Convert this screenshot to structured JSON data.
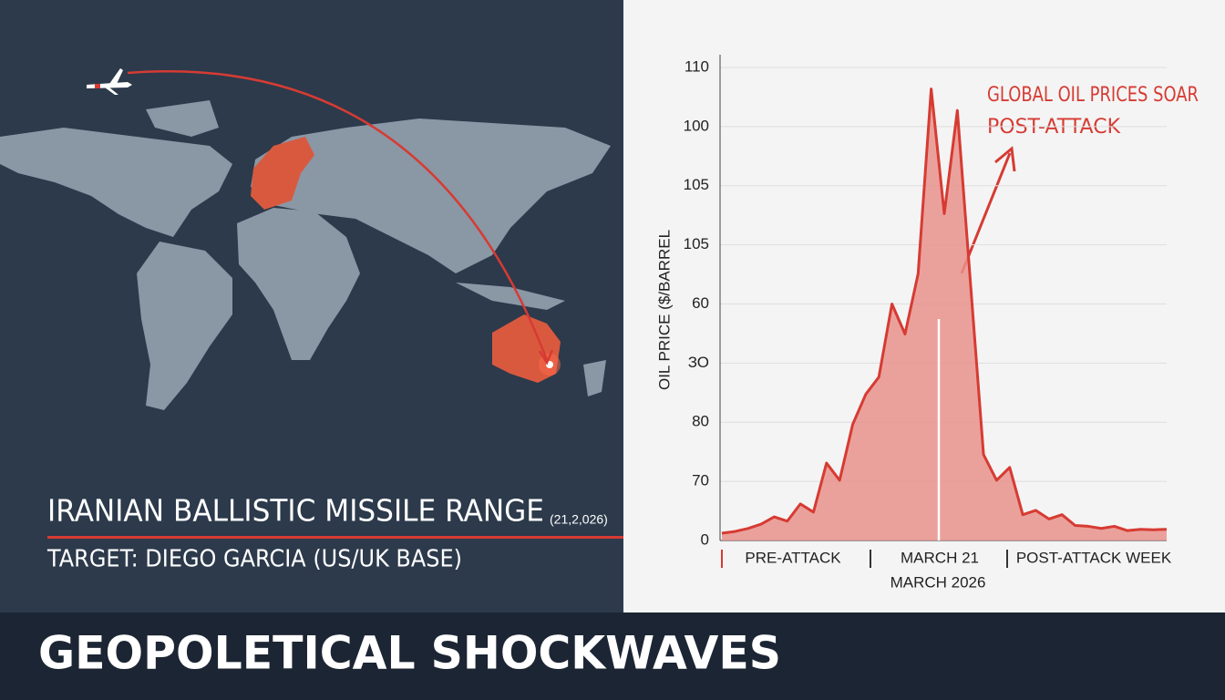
{
  "map": {
    "title": "IRANIAN BALLISTIC MISSILE RANGE",
    "date": "(21,2,026)",
    "target": "TARGET: DIEGO GARCIA (US/UK BASE)"
  },
  "banner": {
    "title": "GEOPOLETICAL SHOCKWAVES"
  },
  "chart_data": {
    "type": "area",
    "y_label": "OIL PRICE ($/BARREL",
    "annotation": [
      "GLOBAL OIL PRICES SOAR",
      "POST-ATTACK"
    ],
    "x_labels": [
      "PRE-ATTACK",
      "MARCH 21",
      "MARCH 2026",
      "POST-ATTACK WEEK"
    ],
    "ytick_labels": [
      "110",
      "100",
      "105",
      "105",
      "60",
      "ЗО",
      "80",
      "70",
      "0"
    ],
    "ylim": [
      0,
      110
    ],
    "categories": [
      null,
      null,
      null,
      null,
      null,
      null,
      null,
      null,
      null,
      null,
      null,
      null,
      null,
      null,
      null,
      null,
      null,
      null,
      null,
      null,
      null,
      null,
      null,
      null,
      null,
      null,
      null,
      null,
      null,
      null,
      null,
      null,
      null,
      null,
      null
    ],
    "series": [
      {
        "color": "#d63b33",
        "fill": "#e9928b",
        "values": [
          1.7,
          2.1,
          2.8,
          3.8,
          5.5,
          4.5,
          8.5,
          6.6,
          18,
          14,
          27,
          34,
          38,
          55,
          48,
          62,
          105,
          76,
          100,
          60,
          20,
          14,
          17,
          6,
          7,
          5,
          6,
          3.5,
          3.3,
          2.8,
          3.3,
          2.3,
          2.6,
          2.5,
          2.6
        ]
      }
    ],
    "grid": true
  }
}
